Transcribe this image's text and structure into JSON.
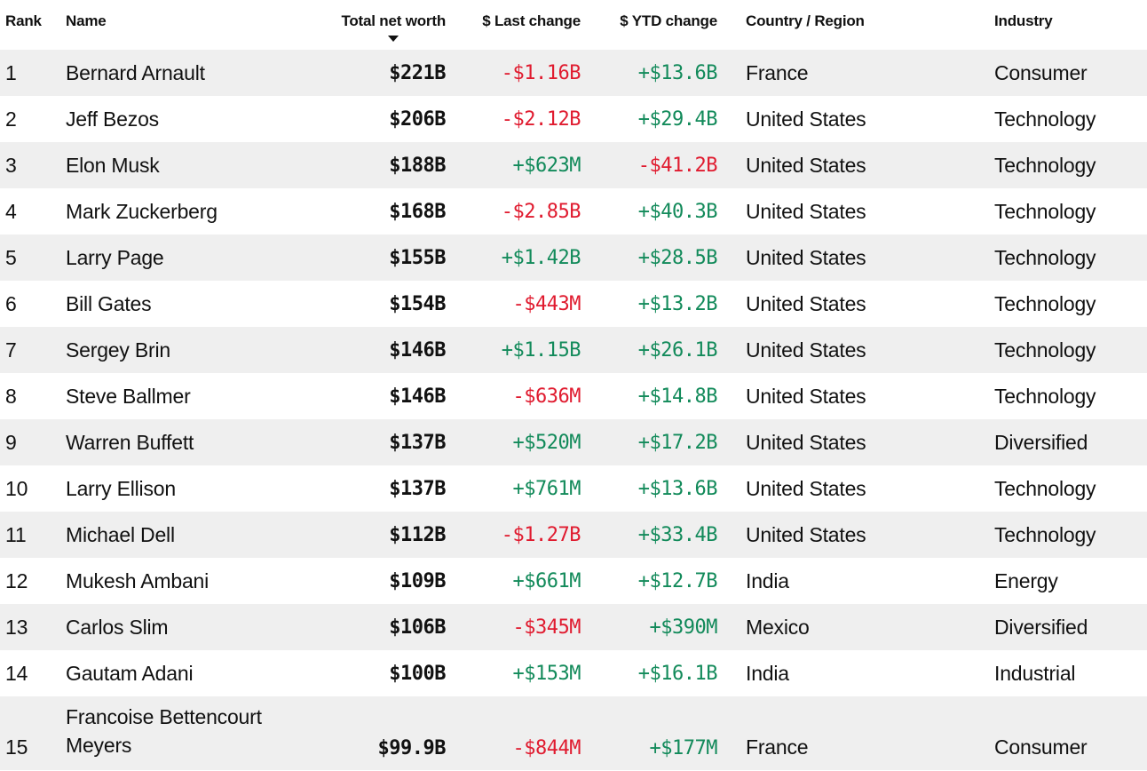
{
  "colors": {
    "negative": "#e01b2f",
    "positive": "#128a5a",
    "row_alt": "#efefef",
    "sort_icon": "#111111"
  },
  "headers": {
    "rank": "Rank",
    "name": "Name",
    "net_worth": "Total net worth",
    "last_change": "$ Last change",
    "ytd_change": "$ YTD change",
    "country": "Country / Region",
    "industry": "Industry",
    "sort_icon": "sort-descending-icon"
  },
  "rows": [
    {
      "rank": "1",
      "name": "Bernard Arnault",
      "net_worth": "$221B",
      "last_change": "-$1.16B",
      "ytd_change": "+$13.6B",
      "country": "France",
      "industry": "Consumer"
    },
    {
      "rank": "2",
      "name": "Jeff Bezos",
      "net_worth": "$206B",
      "last_change": "-$2.12B",
      "ytd_change": "+$29.4B",
      "country": "United States",
      "industry": "Technology"
    },
    {
      "rank": "3",
      "name": "Elon Musk",
      "net_worth": "$188B",
      "last_change": "+$623M",
      "ytd_change": "-$41.2B",
      "country": "United States",
      "industry": "Technology"
    },
    {
      "rank": "4",
      "name": "Mark Zuckerberg",
      "net_worth": "$168B",
      "last_change": "-$2.85B",
      "ytd_change": "+$40.3B",
      "country": "United States",
      "industry": "Technology"
    },
    {
      "rank": "5",
      "name": "Larry Page",
      "net_worth": "$155B",
      "last_change": "+$1.42B",
      "ytd_change": "+$28.5B",
      "country": "United States",
      "industry": "Technology"
    },
    {
      "rank": "6",
      "name": "Bill Gates",
      "net_worth": "$154B",
      "last_change": "-$443M",
      "ytd_change": "+$13.2B",
      "country": "United States",
      "industry": "Technology"
    },
    {
      "rank": "7",
      "name": "Sergey Brin",
      "net_worth": "$146B",
      "last_change": "+$1.15B",
      "ytd_change": "+$26.1B",
      "country": "United States",
      "industry": "Technology"
    },
    {
      "rank": "8",
      "name": "Steve Ballmer",
      "net_worth": "$146B",
      "last_change": "-$636M",
      "ytd_change": "+$14.8B",
      "country": "United States",
      "industry": "Technology"
    },
    {
      "rank": "9",
      "name": "Warren Buffett",
      "net_worth": "$137B",
      "last_change": "+$520M",
      "ytd_change": "+$17.2B",
      "country": "United States",
      "industry": "Diversified"
    },
    {
      "rank": "10",
      "name": "Larry Ellison",
      "net_worth": "$137B",
      "last_change": "+$761M",
      "ytd_change": "+$13.6B",
      "country": "United States",
      "industry": "Technology"
    },
    {
      "rank": "11",
      "name": "Michael Dell",
      "net_worth": "$112B",
      "last_change": "-$1.27B",
      "ytd_change": "+$33.4B",
      "country": "United States",
      "industry": "Technology"
    },
    {
      "rank": "12",
      "name": "Mukesh Ambani",
      "net_worth": "$109B",
      "last_change": "+$661M",
      "ytd_change": "+$12.7B",
      "country": "India",
      "industry": "Energy"
    },
    {
      "rank": "13",
      "name": "Carlos Slim",
      "net_worth": "$106B",
      "last_change": "-$345M",
      "ytd_change": "+$390M",
      "country": "Mexico",
      "industry": "Diversified"
    },
    {
      "rank": "14",
      "name": "Gautam Adani",
      "net_worth": "$100B",
      "last_change": "+$153M",
      "ytd_change": "+$16.1B",
      "country": "India",
      "industry": "Industrial"
    },
    {
      "rank": "15",
      "name": "Francoise Bettencourt Meyers",
      "net_worth": "$99.9B",
      "last_change": "-$844M",
      "ytd_change": "+$177M",
      "country": "France",
      "industry": "Consumer"
    }
  ]
}
